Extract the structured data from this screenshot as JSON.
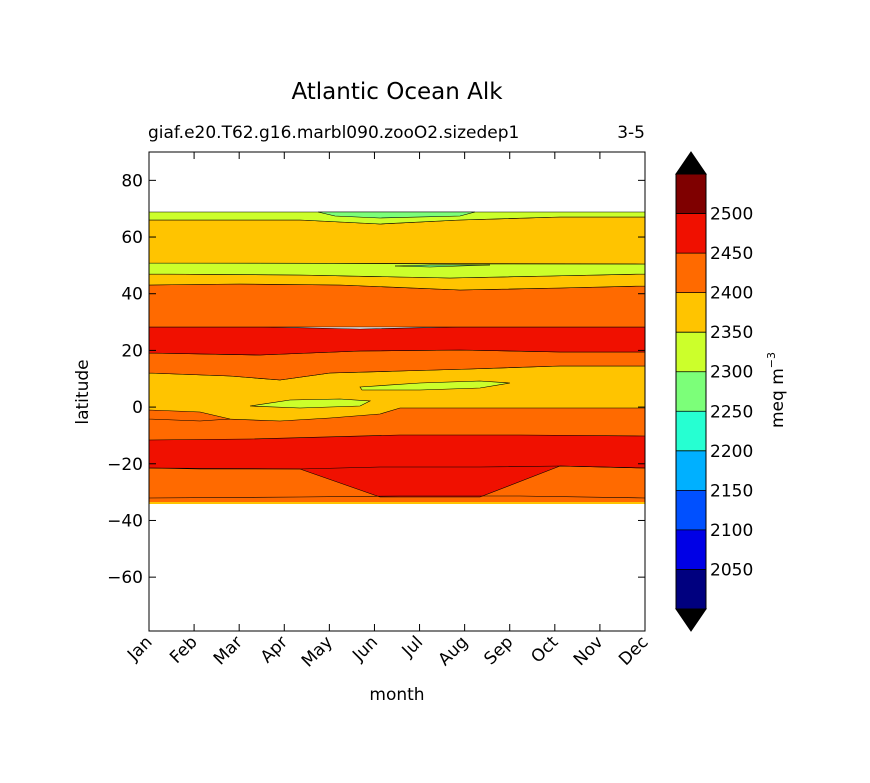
{
  "chart_data": {
    "type": "filled-contour",
    "title": "Atlantic Ocean Alk",
    "subtitle_left": "giaf.e20.T62.g16.marbl090.zooO2.sizedep1",
    "subtitle_right": "3-5",
    "xlabel": "month",
    "ylabel": "latitude",
    "x_ticks": [
      "Jan",
      "Feb",
      "Mar",
      "Apr",
      "May",
      "Jun",
      "Jul",
      "Aug",
      "Sep",
      "Oct",
      "Nov",
      "Dec"
    ],
    "xlim": [
      1,
      12
    ],
    "ylim": [
      -79,
      90
    ],
    "y_ticks": [
      80,
      60,
      40,
      20,
      0,
      -20,
      -40,
      -60
    ],
    "y_tick_labels": [
      "80",
      "60",
      "40",
      "20",
      "0",
      "−20",
      "−40",
      "−60"
    ],
    "colorbar": {
      "label": "meq m",
      "label_exponent": "−3",
      "levels": [
        2000,
        2050,
        2100,
        2150,
        2200,
        2250,
        2300,
        2350,
        2400,
        2450,
        2500,
        2550
      ],
      "tick_labels": [
        "2050",
        "2100",
        "2150",
        "2200",
        "2250",
        "2300",
        "2350",
        "2400",
        "2450",
        "2500"
      ],
      "colors": [
        "#00007f",
        "#0000e6",
        "#0050ff",
        "#00b0ff",
        "#26ffd2",
        "#7cff79",
        "#ccff2b",
        "#ffc400",
        "#ff6a00",
        "#f01000",
        "#7f0000"
      ],
      "under_color": "#000000",
      "over_color": "#000000"
    },
    "bands": [
      {
        "lat_top": 69,
        "lat_bottom": 66,
        "value_range": "2300-2350"
      },
      {
        "lat_top": 66,
        "lat_bottom": 51,
        "value_range": "2350-2400"
      },
      {
        "lat_top": 51,
        "lat_bottom": 47,
        "value_range": "2300-2350"
      },
      {
        "lat_top": 47,
        "lat_bottom": 43,
        "value_range": "2350-2400"
      },
      {
        "lat_top": 43,
        "lat_bottom": 28,
        "value_range": "2400-2450"
      },
      {
        "lat_top": 28,
        "lat_bottom": 18.5,
        "value_range": "2450-2500"
      },
      {
        "lat_top": 18.5,
        "lat_bottom": 12,
        "value_range": "2400-2450"
      },
      {
        "lat_top": 12,
        "lat_bottom": 0,
        "value_range": "2350-2400"
      },
      {
        "lat_top": 0,
        "lat_bottom": -11,
        "value_range": "2400-2450"
      },
      {
        "lat_top": -11,
        "lat_bottom": -21.5,
        "value_range": "2450-2500"
      },
      {
        "lat_top": -21.5,
        "lat_bottom": -34,
        "value_range": "2400-2450"
      }
    ],
    "features": [
      {
        "label": "2250-2300 patch",
        "lat": 67,
        "months": "May-Aug"
      },
      {
        "label": "2300-2350 streak",
        "lat": 7,
        "months": "Jun-Sep"
      },
      {
        "label": "2300-2350 streak",
        "lat": 1,
        "months": "Mar-Jun"
      }
    ]
  }
}
